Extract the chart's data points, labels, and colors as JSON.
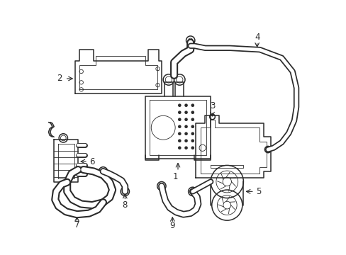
{
  "background_color": "#ffffff",
  "line_color": "#2a2a2a",
  "lw": 1.1,
  "tlw": 0.6,
  "label_fontsize": 8.5,
  "figsize": [
    4.89,
    3.6
  ],
  "dpi": 100,
  "xlim": [
    0,
    489
  ],
  "ylim": [
    0,
    360
  ]
}
